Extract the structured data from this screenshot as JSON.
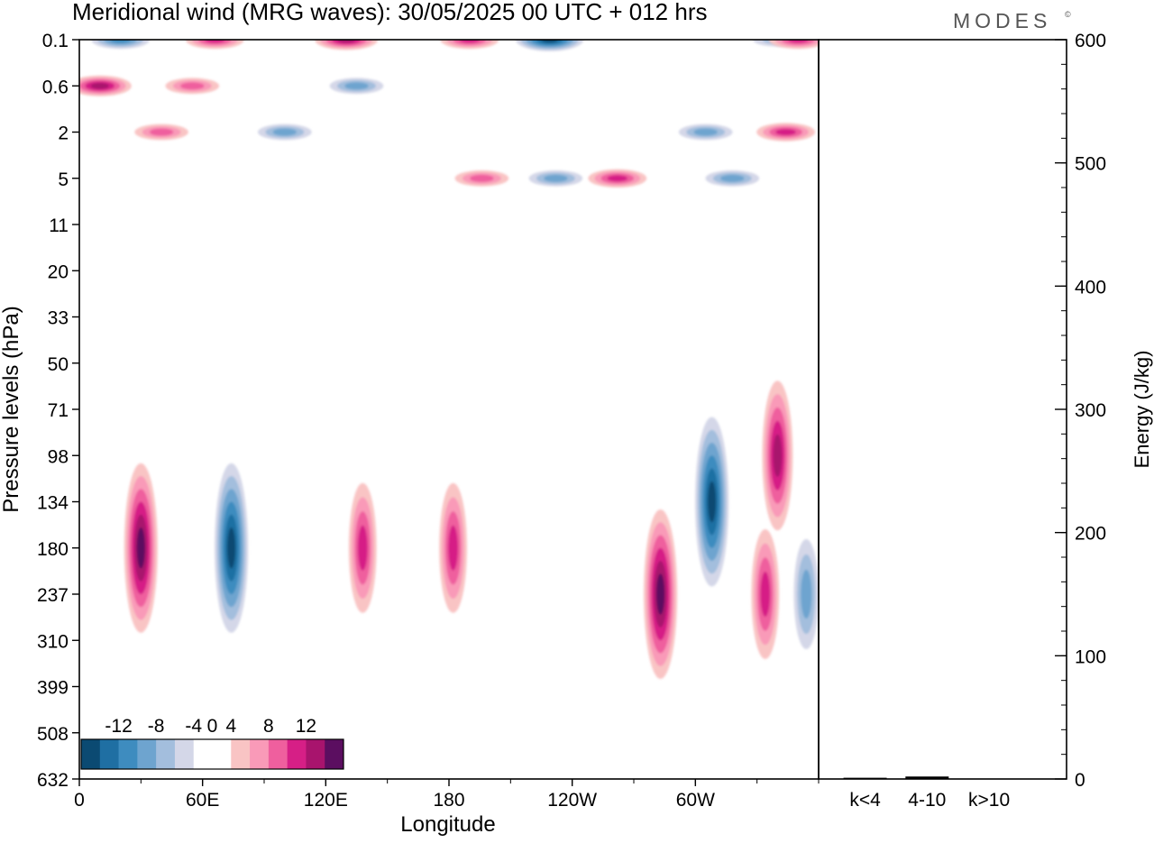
{
  "title": "Meridional wind (MRG waves):  30/05/2025  00 UTC  + 012 hrs",
  "brand": "MODES",
  "brand_mark": "©",
  "colors": {
    "neg": [
      "#0b4a72",
      "#1f6fa3",
      "#3e8cbf",
      "#6ea4cf",
      "#a3bedd",
      "#d4d7e8"
    ],
    "zero": "#ffffff",
    "pos": [
      "#f9c4c4",
      "#f99ab8",
      "#ef5f9e",
      "#d61f86",
      "#a8146d",
      "#5b0e60"
    ]
  },
  "chart_data": [
    {
      "type": "heatmap",
      "title": "Meridional wind (MRG waves):  30/05/2025  00 UTC  + 012 hrs",
      "xlabel": "Longitude",
      "ylabel": "Pressure levels (hPa)",
      "x_ticks": [
        "0",
        "60E",
        "120E",
        "180",
        "120W",
        "60W"
      ],
      "x_tick_values": [
        0,
        60,
        120,
        180,
        240,
        300
      ],
      "xlim": [
        0,
        360
      ],
      "y_ticks": [
        "0.1",
        "0.6",
        "2",
        "5",
        "11",
        "20",
        "33",
        "50",
        "71",
        "98",
        "134",
        "180",
        "237",
        "310",
        "399",
        "508",
        "632"
      ],
      "colorbar": {
        "tick_labels": [
          "-12",
          "-8",
          "-4",
          "0",
          "4",
          "8",
          "12"
        ],
        "levels": [
          -14,
          -12,
          -10,
          -8,
          -6,
          -4,
          -2,
          2,
          4,
          6,
          8,
          10,
          12,
          14
        ]
      },
      "features": [
        {
          "lon": 20,
          "level": "0.1",
          "value": -8
        },
        {
          "lon": 66,
          "level": "0.1",
          "value": 8
        },
        {
          "lon": 130,
          "level": "0.1",
          "value": 10
        },
        {
          "lon": 190,
          "level": "0.1",
          "value": 8
        },
        {
          "lon": 229,
          "level": "0.1",
          "value": -12
        },
        {
          "lon": 340,
          "level": "0.1",
          "value": -4
        },
        {
          "lon": 350,
          "level": "0.1",
          "value": 8
        },
        {
          "lon": 10,
          "level": "0.6",
          "value": 10
        },
        {
          "lon": 55,
          "level": "0.6",
          "value": 6
        },
        {
          "lon": 135,
          "level": "0.6",
          "value": -6
        },
        {
          "lon": 40,
          "level": "2",
          "value": 6
        },
        {
          "lon": 100,
          "level": "2",
          "value": -6
        },
        {
          "lon": 305,
          "level": "2",
          "value": -6
        },
        {
          "lon": 344,
          "level": "2",
          "value": 8
        },
        {
          "lon": 196,
          "level": "5",
          "value": 6
        },
        {
          "lon": 232,
          "level": "5",
          "value": -6
        },
        {
          "lon": 262,
          "level": "5",
          "value": 8
        },
        {
          "lon": 318,
          "level": "5",
          "value": -6
        },
        {
          "lon": 30,
          "level": "180",
          "value": 12
        },
        {
          "lon": 74,
          "level": "180",
          "value": -12
        },
        {
          "lon": 138,
          "level": "180",
          "value": 8
        },
        {
          "lon": 182,
          "level": "180",
          "value": 8
        },
        {
          "lon": 283,
          "level": "237",
          "value": 12
        },
        {
          "lon": 308,
          "level": "134",
          "value": -12
        },
        {
          "lon": 340,
          "level": "98",
          "value": 10
        },
        {
          "lon": 334,
          "level": "237",
          "value": 8
        },
        {
          "lon": 354,
          "level": "237",
          "value": -6
        }
      ]
    },
    {
      "type": "bar",
      "ylabel": "Energy (J/kg)",
      "ylim": [
        0,
        600
      ],
      "y_ticks": [
        "0",
        "100",
        "200",
        "300",
        "400",
        "500",
        "600"
      ],
      "categories": [
        "k<4",
        "4-10",
        "k>10"
      ],
      "values": [
        1,
        2,
        0
      ]
    }
  ]
}
